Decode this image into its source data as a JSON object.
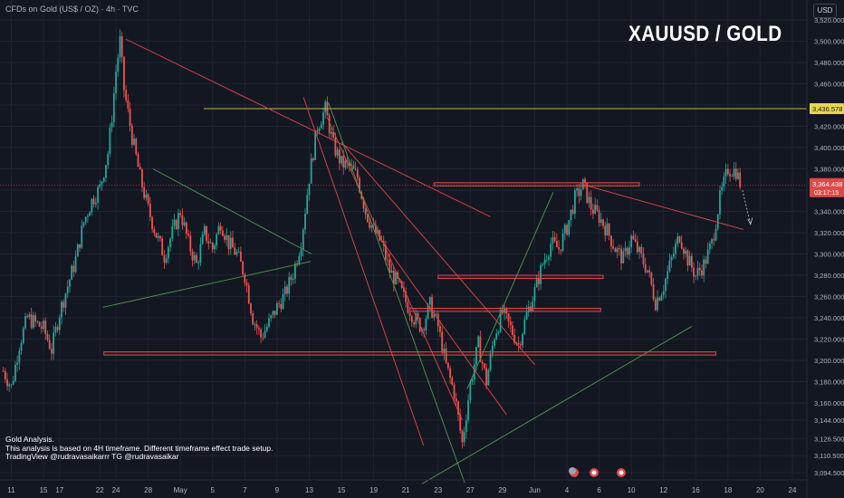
{
  "header": {
    "symbol_line": "CFDs on Gold (US$ / OZ) · 4h · TVC",
    "currency": "USD"
  },
  "overlay_title": "XAUUSD / GOLD",
  "notes": [
    "Gold Analysis.",
    "This analysis is based on 4H timeframe. Different timeframe effect trade setup.",
    "TradingView @rudravasaikarrr TG @rudravasaikar"
  ],
  "colors": {
    "background": "#131722",
    "bull": "#26a69a",
    "bear": "#ef5350",
    "trend_red": "#e04848",
    "trend_green": "#4f9a4f",
    "yellow_line": "#c9b83a",
    "grid": "#1f2431",
    "axis_text": "#b2b5be"
  },
  "chart_data": {
    "type": "candlestick",
    "title": "",
    "ylim": [
      3094.5,
      3520
    ],
    "y_ticks": [
      "3,520.000",
      "3,500.000",
      "3,480.000",
      "3,460.000",
      "3,440.000",
      "3,420.000",
      "3,400.000",
      "3,380.000",
      "3,360.000",
      "3,340.000",
      "3,320.000",
      "3,300.000",
      "3,280.000",
      "3,260.000",
      "3,240.000",
      "3,220.000",
      "3,200.000",
      "3,180.000",
      "3,160.000",
      "3,144.000",
      "3,126.500",
      "3,110.500",
      "3,094.500"
    ],
    "x_ticks": [
      {
        "label": "11",
        "x": 11
      },
      {
        "label": "15",
        "x": 15
      },
      {
        "label": "17",
        "x": 17
      },
      {
        "label": "22",
        "x": 22
      },
      {
        "label": "24",
        "x": 24
      },
      {
        "label": "28",
        "x": 28
      },
      {
        "label": "May",
        "x": 32
      },
      {
        "label": "5",
        "x": 36
      },
      {
        "label": "7",
        "x": 40
      },
      {
        "label": "9",
        "x": 44
      },
      {
        "label": "13",
        "x": 48
      },
      {
        "label": "15",
        "x": 52
      },
      {
        "label": "19",
        "x": 56
      },
      {
        "label": "21",
        "x": 60
      },
      {
        "label": "23",
        "x": 64
      },
      {
        "label": "27",
        "x": 68
      },
      {
        "label": "29",
        "x": 72
      },
      {
        "label": "Jun",
        "x": 76
      },
      {
        "label": "4",
        "x": 80
      },
      {
        "label": "6",
        "x": 84
      },
      {
        "label": "10",
        "x": 88
      },
      {
        "label": "12",
        "x": 92
      },
      {
        "label": "16",
        "x": 96
      },
      {
        "label": "18",
        "x": 100
      },
      {
        "label": "20",
        "x": 104
      },
      {
        "label": "24",
        "x": 108
      }
    ],
    "xlim": [
      9.6,
      109.8
    ],
    "price_labels": [
      {
        "value": 3436.578,
        "text": "3,436.578",
        "style": "yellow"
      },
      {
        "value": 3364.438,
        "text": "3,364.438",
        "sub": "03:17:15",
        "style": "red"
      }
    ],
    "anchors": [
      [
        10,
        3190
      ],
      [
        11,
        3175
      ],
      [
        12,
        3215
      ],
      [
        13,
        3240
      ],
      [
        14,
        3235
      ],
      [
        15,
        3230
      ],
      [
        16,
        3210
      ],
      [
        17,
        3245
      ],
      [
        18,
        3270
      ],
      [
        19,
        3295
      ],
      [
        20,
        3330
      ],
      [
        21,
        3350
      ],
      [
        22,
        3362
      ],
      [
        23,
        3395
      ],
      [
        23.5,
        3430
      ],
      [
        24,
        3472
      ],
      [
        24.5,
        3500
      ],
      [
        25,
        3455
      ],
      [
        26,
        3410
      ],
      [
        27,
        3372
      ],
      [
        28,
        3342
      ],
      [
        29,
        3318
      ],
      [
        30,
        3298
      ],
      [
        31,
        3320
      ],
      [
        32,
        3340
      ],
      [
        33,
        3310
      ],
      [
        34,
        3290
      ],
      [
        35,
        3320
      ],
      [
        36,
        3305
      ],
      [
        37,
        3330
      ],
      [
        38,
        3310
      ],
      [
        39,
        3300
      ],
      [
        40,
        3280
      ],
      [
        41,
        3240
      ],
      [
        42,
        3222
      ],
      [
        43,
        3235
      ],
      [
        44,
        3250
      ],
      [
        45,
        3262
      ],
      [
        46,
        3282
      ],
      [
        47,
        3312
      ],
      [
        48,
        3372
      ],
      [
        49,
        3420
      ],
      [
        50,
        3436
      ],
      [
        51,
        3402
      ],
      [
        52,
        3385
      ],
      [
        53,
        3382
      ],
      [
        54,
        3372
      ],
      [
        55,
        3340
      ],
      [
        56,
        3322
      ],
      [
        57,
        3310
      ],
      [
        58,
        3284
      ],
      [
        59,
        3272
      ],
      [
        60,
        3255
      ],
      [
        61,
        3240
      ],
      [
        62,
        3231
      ],
      [
        63,
        3252
      ],
      [
        64,
        3232
      ],
      [
        65,
        3195
      ],
      [
        66,
        3170
      ],
      [
        67,
        3122
      ],
      [
        68,
        3178
      ],
      [
        69,
        3215
      ],
      [
        70,
        3180
      ],
      [
        71,
        3224
      ],
      [
        72,
        3245
      ],
      [
        73,
        3230
      ],
      [
        74,
        3215
      ],
      [
        75,
        3243
      ],
      [
        76,
        3265
      ],
      [
        77,
        3291
      ],
      [
        78,
        3310
      ],
      [
        79,
        3305
      ],
      [
        80,
        3325
      ],
      [
        81,
        3352
      ],
      [
        82,
        3365
      ],
      [
        83,
        3344
      ],
      [
        84,
        3335
      ],
      [
        85,
        3322
      ],
      [
        86,
        3305
      ],
      [
        87,
        3295
      ],
      [
        88,
        3315
      ],
      [
        89,
        3300
      ],
      [
        90,
        3285
      ],
      [
        91,
        3255
      ],
      [
        92,
        3270
      ],
      [
        93,
        3295
      ],
      [
        94,
        3318
      ],
      [
        95,
        3295
      ],
      [
        96,
        3280
      ],
      [
        97,
        3290
      ],
      [
        98,
        3310
      ],
      [
        99,
        3352
      ],
      [
        100,
        3380
      ],
      [
        101,
        3378
      ],
      [
        101.6,
        3364.438
      ]
    ],
    "drawings": {
      "horizontal_lines": [
        {
          "value": 3436.578,
          "color": "yellow"
        }
      ],
      "zones": [
        {
          "x1": 63.5,
          "x2": 89,
          "y1": 3364,
          "y2": 3367
        },
        {
          "x1": 64,
          "x2": 84.5,
          "y1": 3277,
          "y2": 3280
        },
        {
          "x1": 60.5,
          "x2": 84.2,
          "y1": 3246,
          "y2": 3249
        },
        {
          "x1": 22.5,
          "x2": 98.5,
          "y1": 3205,
          "y2": 3208
        }
      ],
      "trendlines_red": [
        [
          [
            25.2,
            3502
          ],
          [
            70.5,
            3335
          ]
        ],
        [
          [
            47.3,
            3447
          ],
          [
            62.2,
            3120
          ]
        ],
        [
          [
            56.5,
            3318
          ],
          [
            72.5,
            3149
          ]
        ],
        [
          [
            50.2,
            3429
          ],
          [
            67,
            3144
          ]
        ],
        [
          [
            82.1,
            3365
          ],
          [
            101.9,
            3323
          ]
        ],
        [
          [
            52,
            3405
          ],
          [
            76,
            3196
          ]
        ]
      ],
      "trendlines_green": [
        [
          [
            22.4,
            3250
          ],
          [
            48.2,
            3293
          ]
        ],
        [
          [
            28.6,
            3380
          ],
          [
            48.3,
            3300
          ]
        ],
        [
          [
            50.4,
            3442
          ],
          [
            67.3,
            3085
          ]
        ],
        [
          [
            67.6,
            3173
          ],
          [
            78.3,
            3358
          ]
        ],
        [
          [
            62,
            3084
          ],
          [
            95.5,
            3232
          ]
        ]
      ]
    }
  }
}
